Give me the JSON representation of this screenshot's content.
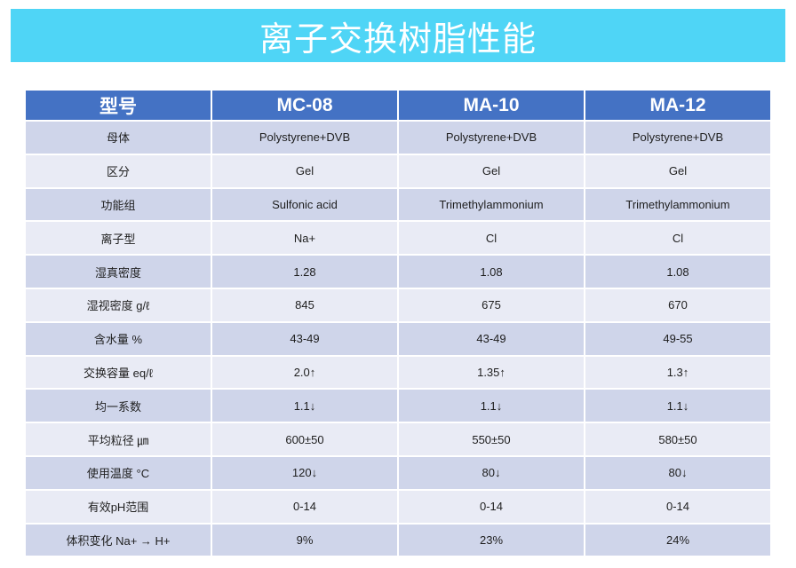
{
  "title": "离子交换树脂性能",
  "colors": {
    "banner": "#4FD5F6",
    "header": "#4472C4",
    "row_dark": "#CFD5EA",
    "row_light": "#E9EBF5"
  },
  "table": {
    "headers": [
      "型号",
      "MC-08",
      "MA-10",
      "MA-12"
    ],
    "rows": [
      [
        "母体",
        "Polystyrene+DVB",
        "Polystyrene+DVB",
        "Polystyrene+DVB"
      ],
      [
        "区分",
        "Gel",
        "Gel",
        "Gel"
      ],
      [
        "功能组",
        "Sulfonic acid",
        "Trimethylammonium",
        "Trimethylammonium"
      ],
      [
        "离子型",
        "Na+",
        "Cl",
        "Cl"
      ],
      [
        "湿真密度",
        "1.28",
        "1.08",
        "1.08"
      ],
      [
        "湿视密度 g/ℓ",
        "845",
        "675",
        "670"
      ],
      [
        "含水量 %",
        "43-49",
        "43-49",
        "49-55"
      ],
      [
        "交换容量 eq/ℓ",
        "2.0↑",
        "1.35↑",
        "1.3↑"
      ],
      [
        "均一系数",
        "1.1↓",
        "1.1↓",
        "1.1↓"
      ],
      [
        "平均粒径 ㎛",
        "600±50",
        "550±50",
        "580±50"
      ],
      [
        "使用温度 °C",
        "120↓",
        "80↓",
        "80↓"
      ],
      [
        "有效pH范围",
        "0-14",
        "0-14",
        "0-14"
      ],
      [
        "体积变化 Na+ → H+",
        "9%",
        "23%",
        "24%"
      ]
    ]
  }
}
